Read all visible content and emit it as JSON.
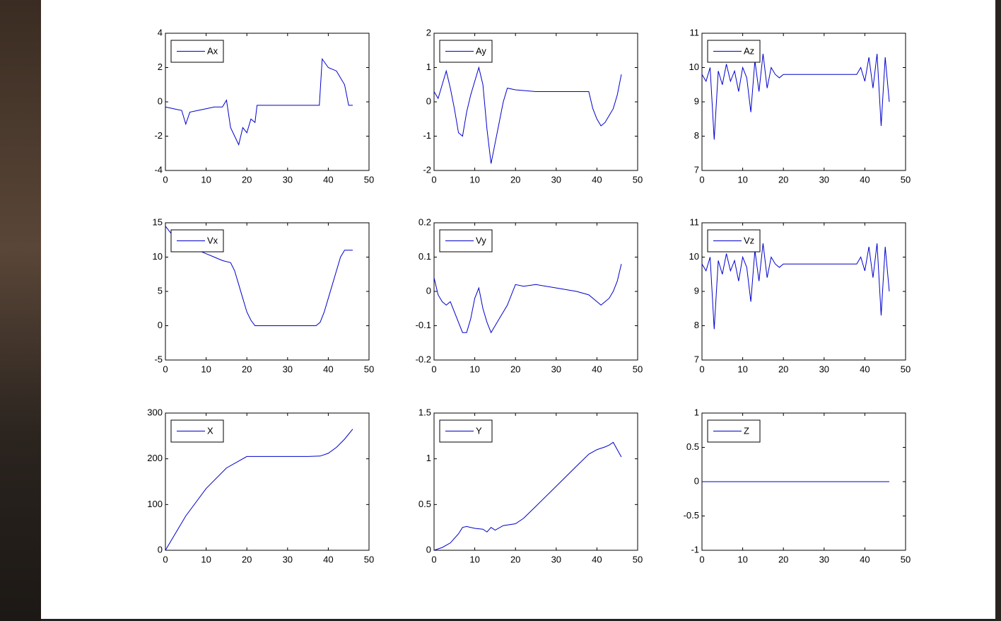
{
  "chart_data": [
    {
      "type": "line",
      "xlim": [
        0,
        50
      ],
      "xticks": [
        0,
        10,
        20,
        30,
        40,
        50
      ],
      "ylim": [
        -4,
        4
      ],
      "yticks": [
        -4,
        -2,
        0,
        2,
        4
      ],
      "legend": "upper left",
      "x": [
        0,
        2,
        4,
        5,
        6,
        8,
        10,
        12,
        14,
        15,
        16,
        17,
        18,
        19,
        20,
        21,
        22,
        22.5,
        25,
        30,
        35,
        37.8,
        38.5,
        40,
        42,
        44,
        45,
        46
      ],
      "series": [
        {
          "name": "Ax",
          "color": "#0000cc",
          "values": [
            -0.3,
            -0.4,
            -0.5,
            -1.3,
            -0.6,
            -0.5,
            -0.4,
            -0.3,
            -0.3,
            0.1,
            -1.5,
            -2.0,
            -2.5,
            -1.5,
            -1.8,
            -1.0,
            -1.2,
            -0.2,
            -0.2,
            -0.2,
            -0.2,
            -0.2,
            2.5,
            2.0,
            1.8,
            1.0,
            -0.2,
            -0.2
          ]
        }
      ]
    },
    {
      "type": "line",
      "xlim": [
        0,
        50
      ],
      "xticks": [
        0,
        10,
        20,
        30,
        40,
        50
      ],
      "ylim": [
        -2,
        2
      ],
      "yticks": [
        -2,
        -1,
        0,
        1,
        2
      ],
      "legend": "upper left",
      "x": [
        0,
        1,
        2,
        3,
        4,
        5,
        6,
        7,
        8,
        9,
        10,
        11,
        12,
        13,
        14,
        15,
        16,
        17,
        18,
        20,
        25,
        30,
        35,
        38,
        39,
        40,
        41,
        42,
        43,
        44,
        45,
        46
      ],
      "series": [
        {
          "name": "Ay",
          "color": "#0000cc",
          "values": [
            0.3,
            0.1,
            0.5,
            0.9,
            0.4,
            -0.2,
            -0.9,
            -1.0,
            -0.3,
            0.2,
            0.6,
            1.0,
            0.5,
            -0.8,
            -1.8,
            -1.2,
            -0.6,
            0.0,
            0.4,
            0.35,
            0.3,
            0.3,
            0.3,
            0.3,
            -0.2,
            -0.5,
            -0.7,
            -0.6,
            -0.4,
            -0.2,
            0.2,
            0.8
          ]
        }
      ]
    },
    {
      "type": "line",
      "xlim": [
        0,
        50
      ],
      "xticks": [
        0,
        10,
        20,
        30,
        40,
        50
      ],
      "ylim": [
        7,
        11
      ],
      "yticks": [
        7,
        8,
        9,
        10,
        11
      ],
      "legend": "upper left",
      "x": [
        0,
        1,
        2,
        3,
        4,
        5,
        6,
        7,
        8,
        9,
        10,
        11,
        12,
        13,
        14,
        15,
        16,
        17,
        18,
        19,
        20,
        25,
        30,
        35,
        38,
        39,
        40,
        41,
        42,
        43,
        44,
        45,
        46
      ],
      "series": [
        {
          "name": "Az",
          "color": "#0000cc",
          "values": [
            9.8,
            9.6,
            10.0,
            7.9,
            9.9,
            9.5,
            10.1,
            9.6,
            9.9,
            9.3,
            10.0,
            9.7,
            8.7,
            10.2,
            9.3,
            10.4,
            9.4,
            10.0,
            9.8,
            9.7,
            9.8,
            9.8,
            9.8,
            9.8,
            9.8,
            10.0,
            9.6,
            10.3,
            9.4,
            10.4,
            8.3,
            10.3,
            9.0
          ]
        }
      ]
    },
    {
      "type": "line",
      "xlim": [
        0,
        50
      ],
      "xticks": [
        0,
        10,
        20,
        30,
        40,
        50
      ],
      "ylim": [
        -5,
        15
      ],
      "yticks": [
        -5,
        0,
        5,
        10,
        15
      ],
      "legend": "upper left",
      "x": [
        0,
        2,
        4,
        6,
        8,
        10,
        12,
        14,
        16,
        17,
        18,
        19,
        20,
        21,
        22,
        25,
        30,
        35,
        37,
        38,
        39,
        40,
        41,
        42,
        43,
        44,
        45,
        46
      ],
      "series": [
        {
          "name": "Vx",
          "color": "#0000cc",
          "values": [
            14.5,
            13,
            12,
            11.5,
            11,
            10.5,
            10,
            9.5,
            9.2,
            8,
            6,
            4,
            2,
            0.8,
            0,
            0,
            0,
            0,
            0,
            0.5,
            2,
            4,
            6,
            8,
            10,
            11,
            11,
            11
          ]
        }
      ]
    },
    {
      "type": "line",
      "xlim": [
        0,
        50
      ],
      "xticks": [
        0,
        10,
        20,
        30,
        40,
        50
      ],
      "ylim": [
        -0.2,
        0.2
      ],
      "yticks": [
        -0.2,
        -0.1,
        0,
        0.1,
        0.2
      ],
      "legend": "upper left",
      "x": [
        0,
        1,
        2,
        3,
        4,
        5,
        6,
        7,
        8,
        9,
        10,
        11,
        12,
        13,
        14,
        15,
        16,
        17,
        18,
        19,
        20,
        22,
        25,
        30,
        35,
        38,
        40,
        41,
        42,
        43,
        44,
        45,
        46
      ],
      "series": [
        {
          "name": "Vy",
          "color": "#0000cc",
          "values": [
            0.04,
            -0.01,
            -0.03,
            -0.04,
            -0.03,
            -0.06,
            -0.09,
            -0.12,
            -0.12,
            -0.08,
            -0.02,
            0.01,
            -0.05,
            -0.09,
            -0.12,
            -0.1,
            -0.08,
            -0.06,
            -0.04,
            -0.01,
            0.02,
            0.015,
            0.02,
            0.01,
            0.0,
            -0.01,
            -0.03,
            -0.04,
            -0.03,
            -0.02,
            0.0,
            0.03,
            0.08
          ]
        }
      ]
    },
    {
      "type": "line",
      "xlim": [
        0,
        50
      ],
      "xticks": [
        0,
        10,
        20,
        30,
        40,
        50
      ],
      "ylim": [
        7,
        11
      ],
      "yticks": [
        7,
        8,
        9,
        10,
        11
      ],
      "legend": "upper left",
      "x": [
        0,
        1,
        2,
        3,
        4,
        5,
        6,
        7,
        8,
        9,
        10,
        11,
        12,
        13,
        14,
        15,
        16,
        17,
        18,
        19,
        20,
        25,
        30,
        35,
        38,
        39,
        40,
        41,
        42,
        43,
        44,
        45,
        46
      ],
      "series": [
        {
          "name": "Vz",
          "color": "#0000cc",
          "values": [
            9.8,
            9.6,
            10.0,
            7.9,
            9.9,
            9.5,
            10.1,
            9.6,
            9.9,
            9.3,
            10.0,
            9.7,
            8.7,
            10.2,
            9.3,
            10.4,
            9.4,
            10.0,
            9.8,
            9.7,
            9.8,
            9.8,
            9.8,
            9.8,
            9.8,
            10.0,
            9.6,
            10.3,
            9.4,
            10.4,
            8.3,
            10.3,
            9.0
          ]
        }
      ]
    },
    {
      "type": "line",
      "xlim": [
        0,
        50
      ],
      "xticks": [
        0,
        10,
        20,
        30,
        40,
        50
      ],
      "ylim": [
        0,
        300
      ],
      "yticks": [
        0,
        100,
        200,
        300
      ],
      "legend": "upper left",
      "x": [
        0,
        2,
        5,
        10,
        15,
        20,
        25,
        30,
        35,
        38,
        40,
        42,
        44,
        46
      ],
      "series": [
        {
          "name": "X",
          "color": "#0000cc",
          "values": [
            0,
            30,
            75,
            135,
            180,
            205,
            205,
            205,
            205,
            206,
            212,
            225,
            243,
            265
          ]
        }
      ]
    },
    {
      "type": "line",
      "xlim": [
        0,
        50
      ],
      "xticks": [
        0,
        10,
        20,
        30,
        40,
        50
      ],
      "ylim": [
        0,
        1.5
      ],
      "yticks": [
        0,
        0.5,
        1,
        1.5
      ],
      "legend": "upper left",
      "x": [
        0,
        2,
        4,
        6,
        7,
        8,
        10,
        12,
        13,
        14,
        15,
        17,
        20,
        22,
        25,
        30,
        35,
        38,
        40,
        42,
        43,
        44,
        45,
        46
      ],
      "series": [
        {
          "name": "Y",
          "color": "#0000cc",
          "values": [
            0,
            0.03,
            0.08,
            0.18,
            0.25,
            0.26,
            0.24,
            0.23,
            0.2,
            0.25,
            0.22,
            0.27,
            0.29,
            0.35,
            0.48,
            0.7,
            0.92,
            1.05,
            1.1,
            1.13,
            1.15,
            1.18,
            1.1,
            1.02
          ]
        }
      ]
    },
    {
      "type": "line",
      "xlim": [
        0,
        50
      ],
      "xticks": [
        0,
        10,
        20,
        30,
        40,
        50
      ],
      "ylim": [
        -1,
        1
      ],
      "yticks": [
        -1,
        -0.5,
        0,
        0.5,
        1
      ],
      "legend": "upper left",
      "x": [
        0,
        46
      ],
      "series": [
        {
          "name": "Z",
          "color": "#0000cc",
          "values": [
            0,
            0
          ]
        }
      ]
    }
  ]
}
